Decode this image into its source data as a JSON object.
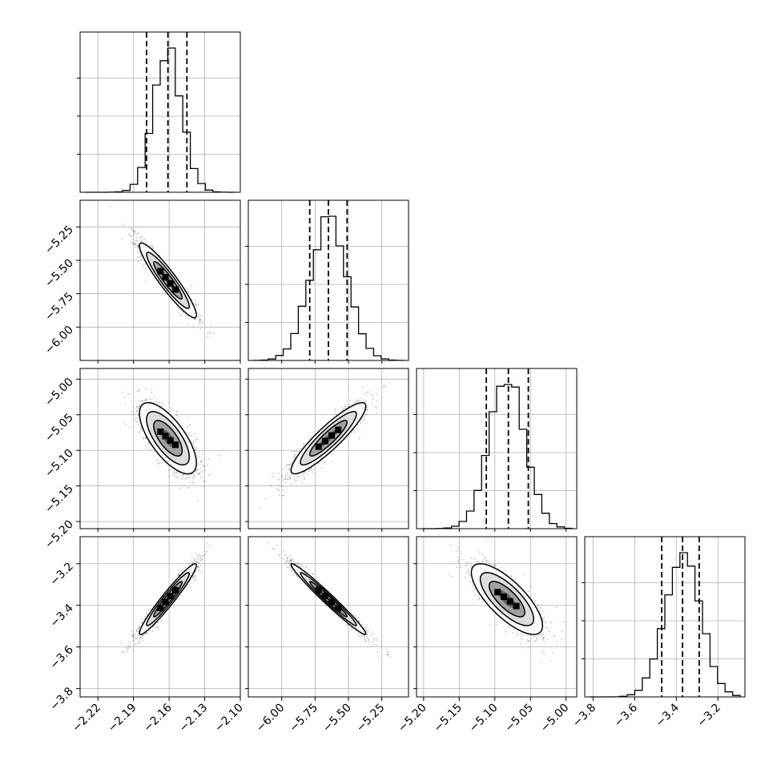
{
  "chart_data": {
    "type": "corner",
    "params": [
      {
        "id": "p1",
        "range": [
          -2.235,
          -2.1
        ],
        "ticks": [
          "−2.22",
          "−2.19",
          "−2.16",
          "−2.13",
          "−2.10"
        ],
        "tick_values": [
          -2.22,
          -2.19,
          -2.16,
          -2.13,
          -2.1
        ],
        "center": -2.161,
        "sd": 0.012,
        "quantiles": [
          -2.179,
          -2.161,
          -2.145
        ]
      },
      {
        "id": "p2",
        "range": [
          -6.25,
          -5.05
        ],
        "ticks": [
          "−6.00",
          "−5.75",
          "−5.50",
          "−5.25"
        ],
        "tick_values": [
          -6.0,
          -5.75,
          -5.5,
          -5.25
        ],
        "center": -5.65,
        "sd": 0.14,
        "quantiles": [
          -5.79,
          -5.65,
          -5.51
        ]
      },
      {
        "id": "p3",
        "range": [
          -5.21,
          -4.985
        ],
        "ticks": [
          "−5.20",
          "−5.15",
          "−5.10",
          "−5.05",
          "−5.00"
        ],
        "tick_values": [
          -5.2,
          -5.15,
          -5.1,
          -5.05,
          -5.0
        ],
        "center": -5.083,
        "sd": 0.025,
        "quantiles": [
          -5.112,
          -5.081,
          -5.053
        ]
      },
      {
        "id": "p4",
        "range": [
          -3.84,
          -3.07
        ],
        "ticks": [
          "−3.8",
          "−3.6",
          "−3.4",
          "−3.2"
        ],
        "tick_values": [
          -3.8,
          -3.6,
          -3.4,
          -3.2
        ],
        "center": -3.37,
        "sd": 0.085,
        "quantiles": [
          -3.47,
          -3.37,
          -3.29
        ]
      }
    ],
    "correlations": [
      {
        "x": 0,
        "y": 1,
        "r": -0.93
      },
      {
        "x": 0,
        "y": 2,
        "r": -0.7
      },
      {
        "x": 1,
        "y": 2,
        "r": 0.9
      },
      {
        "x": 0,
        "y": 3,
        "r": 0.96
      },
      {
        "x": 1,
        "y": 3,
        "r": -0.98
      },
      {
        "x": 2,
        "y": 3,
        "r": -0.75
      }
    ],
    "contour_levels_sigma": [
      0.5,
      1.0,
      1.5,
      2.0
    ],
    "histogram_bins": 20,
    "grid": true,
    "colors": {
      "line": "#000000",
      "points": "#555555",
      "grid": "#b0b0b0"
    }
  }
}
